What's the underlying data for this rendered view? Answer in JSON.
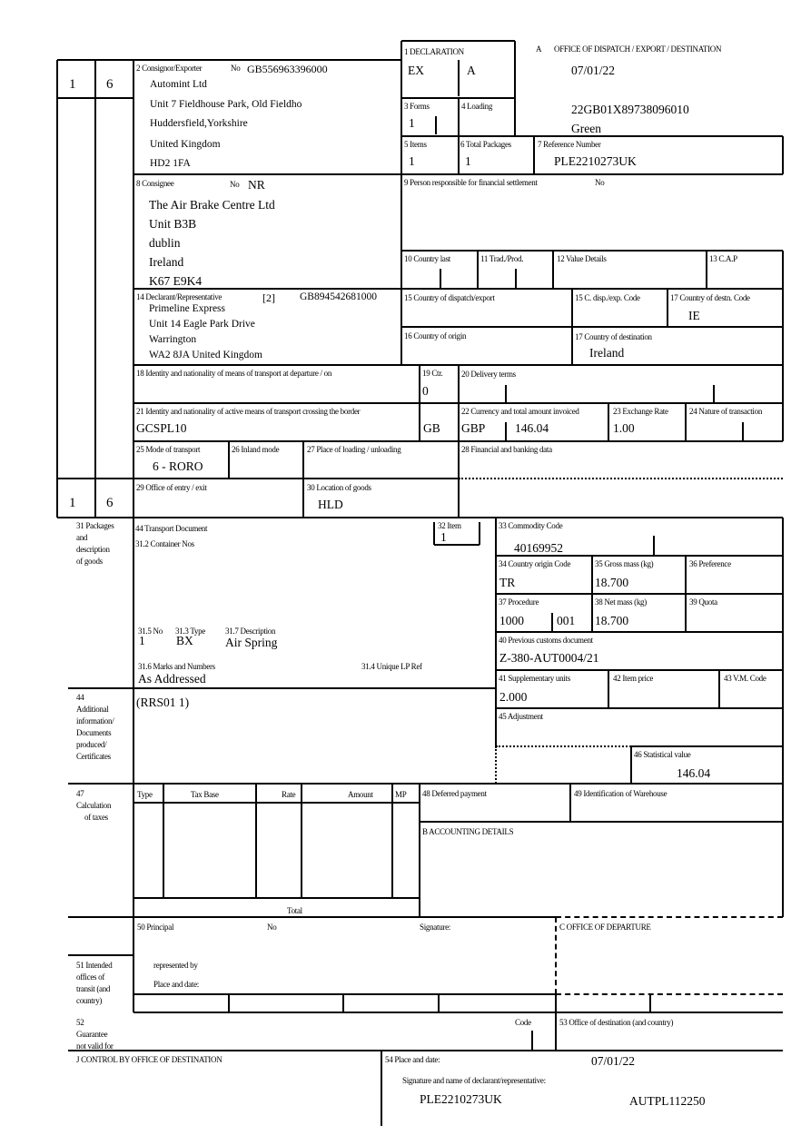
{
  "document": {
    "copy_numbers": {
      "top_left": "1",
      "top_right": "6",
      "bottom_left": "1",
      "bottom_right": "6"
    },
    "box1": {
      "label": "1 DECLARATION",
      "type": "EX",
      "subtype": "A"
    },
    "office": {
      "marker": "A",
      "title": "OFFICE OF DISPATCH / EXPORT / DESTINATION",
      "date": "07/01/22",
      "mrn": "22GB01X89738096010",
      "route": "Green"
    },
    "box2": {
      "label": "2 Consignor/Exporter",
      "no_label": "No",
      "eori": "GB556963396000",
      "lines": [
        "Automint Ltd",
        "Unit 7 Fieldhouse Park, Old Fieldho",
        "Huddersfield,Yorkshire",
        "United Kingdom",
        "HD2 1FA"
      ]
    },
    "box3": {
      "label": "3 Forms",
      "value": "1"
    },
    "box4": {
      "label": "4 Loading"
    },
    "box5": {
      "label": "5 Items",
      "value": "1"
    },
    "box6": {
      "label": "6 Total Packages",
      "value": "1"
    },
    "box7": {
      "label": "7 Reference Number",
      "value": "PLE2210273UK"
    },
    "box8": {
      "label": "8 Consignee",
      "no_label": "No",
      "no_value": "NR",
      "lines": [
        "The Air Brake Centre Ltd",
        "Unit B3B",
        "dublin",
        "Ireland",
        "K67 E9K4"
      ]
    },
    "box9": {
      "label": "9 Person responsible for financial settlement",
      "no_label": "No"
    },
    "box10": {
      "label": "10 Country last"
    },
    "box11": {
      "label": "11 Trad./Prod."
    },
    "box12": {
      "label": "12 Value Details"
    },
    "box13": {
      "label": "13 C.A.P"
    },
    "box14": {
      "label": "14 Declarant/Representative",
      "code": "[2]",
      "eori": "GB894542681000",
      "lines": [
        "Primeline Express",
        "Unit 14 Eagle Park Drive",
        "Warrington",
        "WA2 8JA United Kingdom"
      ]
    },
    "box15": {
      "label": "15 Country of dispatch/export"
    },
    "box15c": {
      "label": "15 C. disp./exp. Code"
    },
    "box17code": {
      "label": "17 Country of destn. Code",
      "value": "IE"
    },
    "box16": {
      "label": "16 Country of origin"
    },
    "box17": {
      "label": "17 Country of destination",
      "value": "Ireland"
    },
    "box18": {
      "label": "18 Identity and nationality of means of transport at departure / on"
    },
    "box19": {
      "label": "19 Ctr.",
      "value": "0"
    },
    "box20": {
      "label": "20 Delivery terms"
    },
    "box21": {
      "label": "21 Identity and nationality of active means of transport crossing the border",
      "value": "GCSPL10",
      "nationality": "GB"
    },
    "box22": {
      "label": "22 Currency and total amount invoiced",
      "currency": "GBP",
      "amount": "146.04"
    },
    "box23": {
      "label": "23 Exchange Rate",
      "value": "1.00"
    },
    "box24": {
      "label": "24 Nature of transaction"
    },
    "box25": {
      "label": "25 Mode of transport",
      "value": "6 - RORO"
    },
    "box26": {
      "label": "26 Inland mode"
    },
    "box27": {
      "label": "27 Place of loading / unloading"
    },
    "box28": {
      "label": "28 Financial and banking data"
    },
    "box29": {
      "label": "29 Office of entry / exit"
    },
    "box30": {
      "label": "30 Location of goods",
      "value": "HLD"
    },
    "box31": {
      "label_lines": [
        "31 Packages",
        "and",
        "description",
        "of goods"
      ],
      "transport_doc_label": "44 Transport Document",
      "container_label": "31.2 Container Nos",
      "no_label": "31.5 No",
      "no_value": "1",
      "type_label": "31.3 Type",
      "type_value": "BX",
      "desc_label": "31.7 Description",
      "desc_value": "Air Spring",
      "marks_label": "31.6 Marks and Numbers",
      "marks_value": "As Addressed",
      "unique_ref_label": "31.4 Unique LP Ref"
    },
    "box32": {
      "label": "32 Item",
      "value": "1"
    },
    "box33": {
      "label": "33 Commodity Code",
      "value": "40169952"
    },
    "box34": {
      "label": "34 Country origin Code",
      "value": "TR"
    },
    "box35": {
      "label": "35 Gross mass (kg)",
      "value": "18.700"
    },
    "box36": {
      "label": "36 Preference"
    },
    "box37": {
      "label": "37 Procedure",
      "value": "1000",
      "additional": "001"
    },
    "box38": {
      "label": "38 Net mass (kg)",
      "value": "18.700"
    },
    "box39": {
      "label": "39 Quota"
    },
    "box40": {
      "label": "40 Previous customs document",
      "value": "Z-380-AUT0004/21"
    },
    "box41": {
      "label": "41 Supplementary units",
      "value": "2.000"
    },
    "box42": {
      "label": "42 Item price"
    },
    "box43": {
      "label": "43 V.M. Code"
    },
    "box44": {
      "label_lines": [
        "44",
        "Additional",
        "information/",
        "Documents",
        "produced/",
        "Certificates"
      ],
      "value": "(RRS01 1)"
    },
    "box45": {
      "label": "45 Adjustment"
    },
    "box46": {
      "label": "46 Statistical value",
      "value": "146.04"
    },
    "box47": {
      "label_lines": [
        "47",
        "Calculation",
        "of taxes"
      ],
      "columns": [
        "Type",
        "Tax Base",
        "Rate",
        "Amount",
        "MP"
      ],
      "total_label": "Total"
    },
    "box48": {
      "label": "48 Deferred payment"
    },
    "box49": {
      "label": "49 Identification of Warehouse"
    },
    "boxB": {
      "label": "B ACCOUNTING DETAILS"
    },
    "box50": {
      "label": "50 Principal",
      "no_label": "No",
      "signature_label": "Signature:",
      "represented_label": "represented by",
      "place_label": "Place and date:"
    },
    "boxC": {
      "label": "C OFFICE OF DEPARTURE"
    },
    "box51": {
      "label_lines": [
        "51 Intended",
        "offices of",
        "transit (and",
        "country)"
      ]
    },
    "box52": {
      "label_lines": [
        "52",
        "Guarantee",
        "not valid for"
      ],
      "code_label": "Code"
    },
    "box53": {
      "label": "53 Office of destination (and country)"
    },
    "boxJ": {
      "label": "J CONTROL BY OFFICE OF DESTINATION"
    },
    "box54": {
      "label": "54 Place and date:",
      "date": "07/01/22",
      "signature_label": "Signature and name of declarant/representative:",
      "reference": "PLE2210273UK",
      "agent_code": "AUTPL112250"
    }
  }
}
